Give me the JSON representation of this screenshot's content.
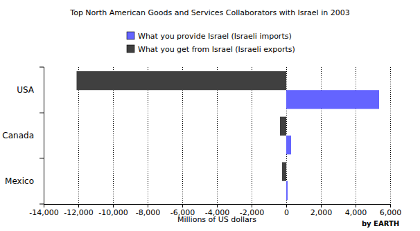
{
  "chart_data": {
    "type": "bar",
    "orientation": "horizontal",
    "title": "Top North American Goods and Services Collaborators with Israel in 2003",
    "x_label": "Millions of US dollars",
    "annotations": [
      "by EARTH"
    ],
    "categories": [
      "USA",
      "Canada",
      "Mexico"
    ],
    "series": [
      {
        "name": "What you provide Israel (Israeli imports)",
        "color": "#6464ff",
        "values": [
          5360,
          280,
          80
        ]
      },
      {
        "name": "What you get from Israel (Israeli exports)",
        "color": "#404040",
        "values": [
          -12100,
          -360,
          -240
        ]
      }
    ],
    "xlim": [
      -14000,
      6000
    ],
    "xticks": [
      {
        "value": -14000,
        "label": "-14,000"
      },
      {
        "value": -12000,
        "label": "-12,000"
      },
      {
        "value": -10000,
        "label": "-10,000"
      },
      {
        "value": -8000,
        "label": "-8,000"
      },
      {
        "value": -6000,
        "label": "-6,000"
      },
      {
        "value": -4000,
        "label": "-4,000"
      },
      {
        "value": -2000,
        "label": "-2,000"
      },
      0,
      {
        "value": 2000,
        "label": "2,000"
      },
      {
        "value": 4000,
        "label": "4,000"
      },
      {
        "value": 6000,
        "label": "6,000"
      }
    ],
    "grid": true,
    "legend": "top"
  }
}
